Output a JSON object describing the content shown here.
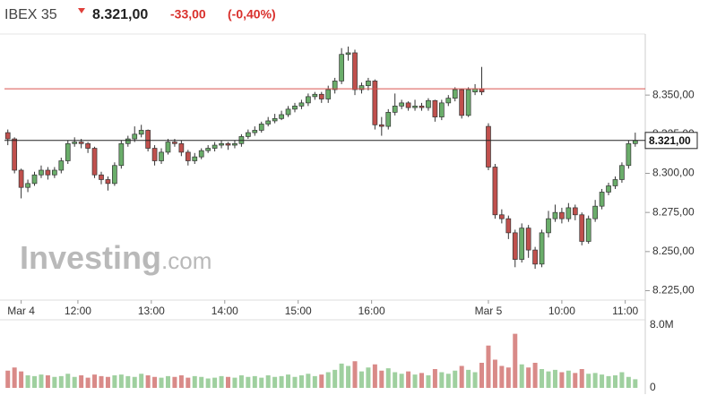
{
  "header": {
    "name": "IBEX 35",
    "price": "8.321,00",
    "change": "-33,00",
    "change_pct": "(-0,40%)"
  },
  "watermark": {
    "brand": "Investing",
    "suffix": ".com"
  },
  "chart_data": {
    "type": "candlestick",
    "up_color": "#6aad6a",
    "down_color": "#c0504d",
    "volume_up_color": "#9fd09f",
    "volume_down_color": "#d98a88",
    "xlim": [
      -0.5,
      95.5
    ],
    "xticks": [
      {
        "value": 2,
        "label": "Mar 4"
      },
      {
        "value": 10.5,
        "label": "12:00"
      },
      {
        "value": 21.5,
        "label": "13:00"
      },
      {
        "value": 32.5,
        "label": "14:00"
      },
      {
        "value": 43.5,
        "label": "15:00"
      },
      {
        "value": 54.5,
        "label": "16:00"
      },
      {
        "value": 72,
        "label": "Mar 5"
      },
      {
        "value": 83,
        "label": "10:00"
      },
      {
        "value": 92.5,
        "label": "11:00"
      }
    ],
    "ylim": [
      8219,
      8389
    ],
    "yticks": [
      {
        "value": 8225,
        "label": "8.225,00"
      },
      {
        "value": 8250,
        "label": "8.250,00"
      },
      {
        "value": 8275,
        "label": "8.275,00"
      },
      {
        "value": 8300,
        "label": "8.300,00"
      },
      {
        "value": 8325,
        "label": "8.325,00"
      },
      {
        "value": 8350,
        "label": "8.350,00"
      }
    ],
    "prev_close": 8354,
    "prev_close_color": "#d9534f",
    "last": 8321,
    "ohlc": [
      [
        8326,
        8328,
        8318,
        8322
      ],
      [
        8322,
        8323,
        8300,
        8302
      ],
      [
        8302,
        8303,
        8284,
        8291
      ],
      [
        8291,
        8296,
        8288,
        8293.5
      ],
      [
        8293.5,
        8301,
        8292,
        8299
      ],
      [
        8299,
        8305,
        8297,
        8302
      ],
      [
        8302,
        8304,
        8296,
        8299
      ],
      [
        8299,
        8304,
        8297,
        8302
      ],
      [
        8302,
        8310,
        8300,
        8308
      ],
      [
        8308,
        8321,
        8306,
        8319
      ],
      [
        8319,
        8323,
        8317,
        8320
      ],
      [
        8320,
        8322,
        8316,
        8319
      ],
      [
        8319,
        8320,
        8313,
        8316
      ],
      [
        8316,
        8317,
        8297,
        8299
      ],
      [
        8299,
        8301,
        8293,
        8296
      ],
      [
        8296,
        8298,
        8289,
        8293.5
      ],
      [
        8293.5,
        8307,
        8292,
        8305
      ],
      [
        8305,
        8321,
        8303,
        8319
      ],
      [
        8319,
        8324,
        8317,
        8322
      ],
      [
        8322,
        8330,
        8320,
        8325
      ],
      [
        8325,
        8331,
        8323,
        8327.5
      ],
      [
        8327.5,
        8328,
        8314,
        8316
      ],
      [
        8316,
        8318,
        8305,
        8308
      ],
      [
        8308,
        8316,
        8306,
        8313.5
      ],
      [
        8313.5,
        8322,
        8312,
        8320
      ],
      [
        8320,
        8322,
        8317,
        8319
      ],
      [
        8319,
        8321,
        8311,
        8313.5
      ],
      [
        8313.5,
        8315,
        8305,
        8308
      ],
      [
        8308,
        8313,
        8306,
        8310.5
      ],
      [
        8310.5,
        8316,
        8309,
        8314.5
      ],
      [
        8314.5,
        8318,
        8313,
        8316
      ],
      [
        8316,
        8320,
        8314,
        8318
      ],
      [
        8318,
        8321,
        8316,
        8319
      ],
      [
        8319,
        8320,
        8315,
        8318
      ],
      [
        8318,
        8321,
        8316,
        8319
      ],
      [
        8319,
        8325,
        8317,
        8323.5
      ],
      [
        8323.5,
        8328,
        8322,
        8326
      ],
      [
        8326,
        8330,
        8324,
        8327.5
      ],
      [
        8327.5,
        8333,
        8326,
        8331.5
      ],
      [
        8331.5,
        8336,
        8330,
        8333.5
      ],
      [
        8333.5,
        8338,
        8332,
        8335
      ],
      [
        8335,
        8340,
        8334,
        8337.5
      ],
      [
        8337.5,
        8343,
        8336,
        8341
      ],
      [
        8341,
        8345,
        8339,
        8343
      ],
      [
        8343,
        8347,
        8341,
        8345
      ],
      [
        8345,
        8351,
        8343,
        8349
      ],
      [
        8349,
        8352,
        8347,
        8350.5
      ],
      [
        8350.5,
        8352,
        8345,
        8347.5
      ],
      [
        8347.5,
        8356,
        8345,
        8353.5
      ],
      [
        8353.5,
        8361,
        8351,
        8359
      ],
      [
        8359,
        8380,
        8357,
        8376
      ],
      [
        8376,
        8381,
        8372,
        8377
      ],
      [
        8377,
        8379,
        8350,
        8353.5
      ],
      [
        8353.5,
        8358,
        8351,
        8356
      ],
      [
        8356,
        8361,
        8353,
        8359
      ],
      [
        8359,
        8360,
        8328,
        8331
      ],
      [
        8331,
        8336,
        8324,
        8330
      ],
      [
        8330,
        8341,
        8328,
        8339
      ],
      [
        8339,
        8351,
        8337,
        8343
      ],
      [
        8343,
        8347,
        8341,
        8345
      ],
      [
        8345,
        8346,
        8340,
        8342
      ],
      [
        8342,
        8347,
        8340,
        8343
      ],
      [
        8343,
        8345,
        8340,
        8342
      ],
      [
        8342,
        8348,
        8340,
        8346.5
      ],
      [
        8346.5,
        8347,
        8333,
        8336
      ],
      [
        8336,
        8347,
        8334,
        8345
      ],
      [
        8345,
        8350,
        8343,
        8348
      ],
      [
        8348,
        8355,
        8346,
        8353.5
      ],
      [
        8353.5,
        8354,
        8335,
        8337
      ],
      [
        8337,
        8355,
        8336,
        8353.5
      ],
      [
        8352,
        8357,
        8350,
        8354
      ],
      [
        8354,
        8368,
        8350,
        8352
      ],
      [
        8330,
        8332,
        8302,
        8304
      ],
      [
        8304,
        8306,
        8271,
        8273.5
      ],
      [
        8273.5,
        8277,
        8268,
        8271
      ],
      [
        8271,
        8273,
        8258,
        8262
      ],
      [
        8262,
        8264,
        8240,
        8245
      ],
      [
        8245,
        8268,
        8243,
        8265
      ],
      [
        8265,
        8267,
        8246,
        8251
      ],
      [
        8251,
        8253,
        8239,
        8242
      ],
      [
        8242,
        8264,
        8240,
        8262
      ],
      [
        8262,
        8276,
        8259,
        8271
      ],
      [
        8271,
        8280,
        8269,
        8275
      ],
      [
        8275,
        8278,
        8268,
        8271
      ],
      [
        8271,
        8281,
        8269,
        8278
      ],
      [
        8278,
        8280,
        8270,
        8273.5
      ],
      [
        8273.5,
        8275,
        8254,
        8256.5
      ],
      [
        8256.5,
        8273,
        8255,
        8271
      ],
      [
        8271,
        8283,
        8269,
        8279
      ],
      [
        8279,
        8290,
        8277,
        8288
      ],
      [
        8288,
        8294,
        8286,
        8292
      ],
      [
        8292,
        8298,
        8290,
        8296
      ],
      [
        8296,
        8307,
        8294,
        8305
      ],
      [
        8305,
        8321,
        8303,
        8319
      ],
      [
        8319,
        8326,
        8317,
        8321
      ]
    ],
    "volume_ylim": [
      0,
      8
    ],
    "volume_ticks": [
      {
        "value": 8,
        "label": "8.0M"
      },
      0
    ],
    "volume": [
      2.2,
      2.6,
      2.1,
      1.6,
      1.5,
      1.7,
      1.6,
      1.4,
      1.5,
      1.8,
      1.4,
      1.6,
      1.3,
      1.7,
      1.5,
      1.4,
      1.6,
      1.7,
      1.5,
      1.4,
      1.8,
      1.6,
      1.4,
      1.3,
      1.5,
      1.4,
      1.6,
      1.3,
      1.5,
      1.4,
      1.2,
      1.3,
      1.5,
      1.4,
      1.3,
      1.6,
      1.4,
      1.5,
      1.3,
      1.6,
      1.4,
      1.5,
      1.7,
      1.4,
      1.6,
      1.8,
      1.5,
      1.7,
      2.0,
      2.3,
      3.1,
      2.8,
      3.4,
      2.1,
      2.6,
      3.0,
      2.2,
      2.5,
      2.0,
      1.8,
      2.1,
      1.7,
      1.9,
      1.6,
      2.4,
      2.0,
      1.8,
      2.2,
      2.8,
      2.3,
      2.0,
      3.2,
      5.4,
      3.6,
      2.8,
      2.6,
      6.9,
      3.0,
      2.6,
      3.2,
      2.4,
      2.1,
      2.3,
      2.0,
      2.2,
      1.9,
      2.4,
      1.8,
      1.9,
      1.7,
      1.5,
      1.6,
      2.0,
      1.4,
      1.1
    ]
  }
}
